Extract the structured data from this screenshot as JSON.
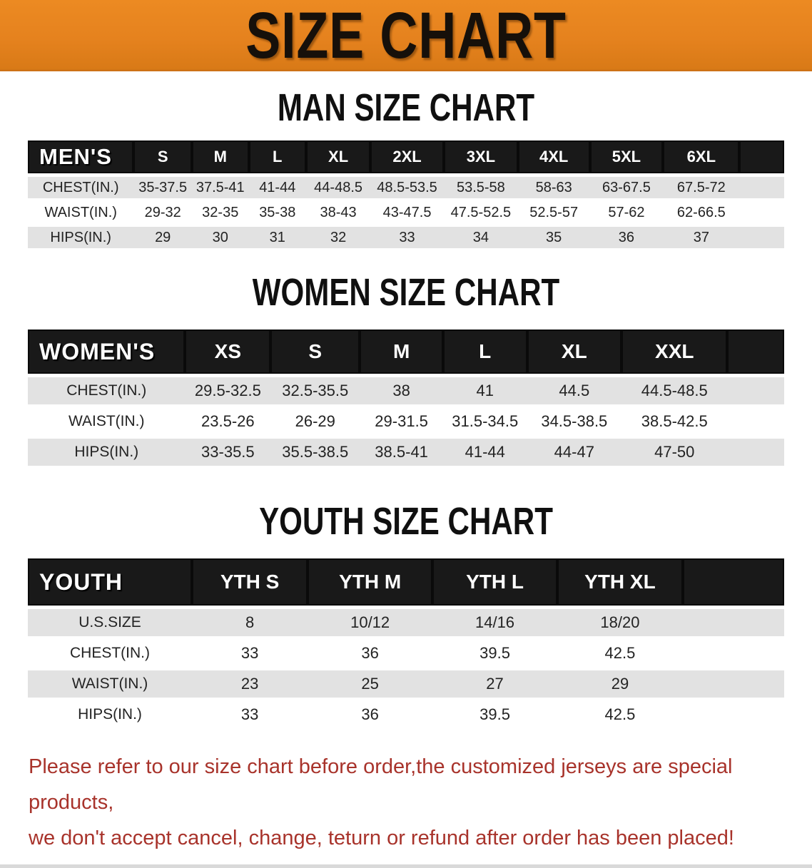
{
  "banner": {
    "title": "SIZE CHART"
  },
  "colors": {
    "banner_bg": "#E5821E",
    "banner_text": "#16100A",
    "header_bg": "#191919",
    "header_text": "#FFFFFF",
    "row_gray": "#E2E2E2",
    "row_white": "#FFFFFF",
    "cell_text": "#232323",
    "note_red": "#A8332B"
  },
  "sections": {
    "men": {
      "heading": "MAN SIZE CHART"
    },
    "women": {
      "heading": "WOMEN SIZE CHART"
    },
    "youth": {
      "heading": "YOUTH SIZE CHART"
    }
  },
  "tables": {
    "men": {
      "label": "MEN'S",
      "sizes": [
        "S",
        "M",
        "L",
        "XL",
        "2XL",
        "3XL",
        "4XL",
        "5XL",
        "6XL"
      ],
      "rows": [
        {
          "label": "CHEST(IN.)",
          "values": [
            "35-37.5",
            "37.5-41",
            "41-44",
            "44-48.5",
            "48.5-53.5",
            "53.5-58",
            "58-63",
            "63-67.5",
            "67.5-72"
          ]
        },
        {
          "label": "WAIST(IN.)",
          "values": [
            "29-32",
            "32-35",
            "35-38",
            "38-43",
            "43-47.5",
            "47.5-52.5",
            "52.5-57",
            "57-62",
            "62-66.5"
          ]
        },
        {
          "label": "HIPS(IN.)",
          "values": [
            "29",
            "30",
            "31",
            "32",
            "33",
            "34",
            "35",
            "36",
            "37"
          ]
        }
      ]
    },
    "women": {
      "label": "WOMEN'S",
      "sizes": [
        "XS",
        "S",
        "M",
        "L",
        "XL",
        "XXL"
      ],
      "rows": [
        {
          "label": "CHEST(IN.)",
          "values": [
            "29.5-32.5",
            "32.5-35.5",
            "38",
            "41",
            "44.5",
            "44.5-48.5"
          ]
        },
        {
          "label": "WAIST(IN.)",
          "values": [
            "23.5-26",
            "26-29",
            "29-31.5",
            "31.5-34.5",
            "34.5-38.5",
            "38.5-42.5"
          ]
        },
        {
          "label": "HIPS(IN.)",
          "values": [
            "33-35.5",
            "35.5-38.5",
            "38.5-41",
            "41-44",
            "44-47",
            "47-50"
          ]
        }
      ]
    },
    "youth": {
      "label": "YOUTH",
      "sizes": [
        "YTH S",
        "YTH M",
        "YTH L",
        "YTH XL"
      ],
      "rows": [
        {
          "label": "U.S.SIZE",
          "values": [
            "8",
            "10/12",
            "14/16",
            "18/20"
          ]
        },
        {
          "label": "CHEST(IN.)",
          "values": [
            "33",
            "36",
            "39.5",
            "42.5"
          ]
        },
        {
          "label": "WAIST(IN.)",
          "values": [
            "23",
            "25",
            "27",
            "29"
          ]
        },
        {
          "label": "HIPS(IN.)",
          "values": [
            "33",
            "36",
            "39.5",
            "42.5"
          ]
        }
      ]
    }
  },
  "note": {
    "line1": "Please refer to our size chart before order,the customized jerseys are special products,",
    "line2": "we don't accept cancel, change, teturn or refund after order has been placed!"
  }
}
